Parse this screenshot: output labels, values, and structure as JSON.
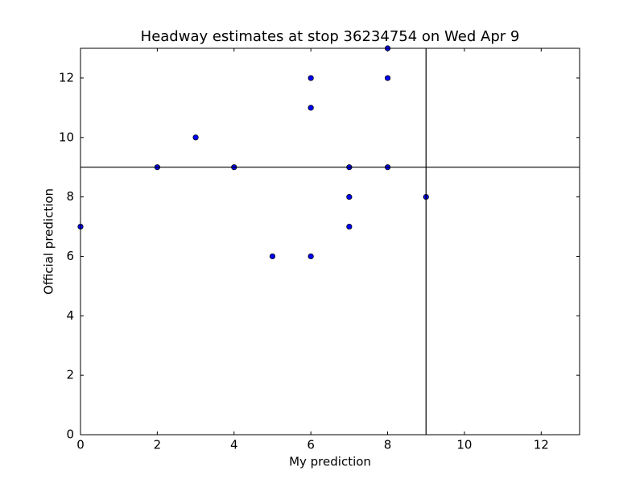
{
  "chart_data": {
    "type": "scatter",
    "title": "Headway estimates at stop 36234754 on Wed Apr 9",
    "x_label": "My prediction",
    "y_label": "Official prediction",
    "x": [
      0,
      2,
      3,
      4,
      5,
      6,
      6,
      6,
      7,
      7,
      7,
      8,
      8,
      8,
      9
    ],
    "values": [
      7,
      9,
      10,
      9,
      6,
      12,
      11,
      6,
      9,
      8,
      7,
      13,
      12,
      9,
      8
    ],
    "color": "#0000ff",
    "vline": 9,
    "hline": 9,
    "xlim": [
      0,
      13
    ],
    "ylim": [
      0,
      13
    ],
    "xticks": [
      0,
      2,
      4,
      6,
      8,
      10,
      12
    ],
    "yticks": [
      0,
      2,
      4,
      6,
      8,
      10,
      12
    ]
  }
}
